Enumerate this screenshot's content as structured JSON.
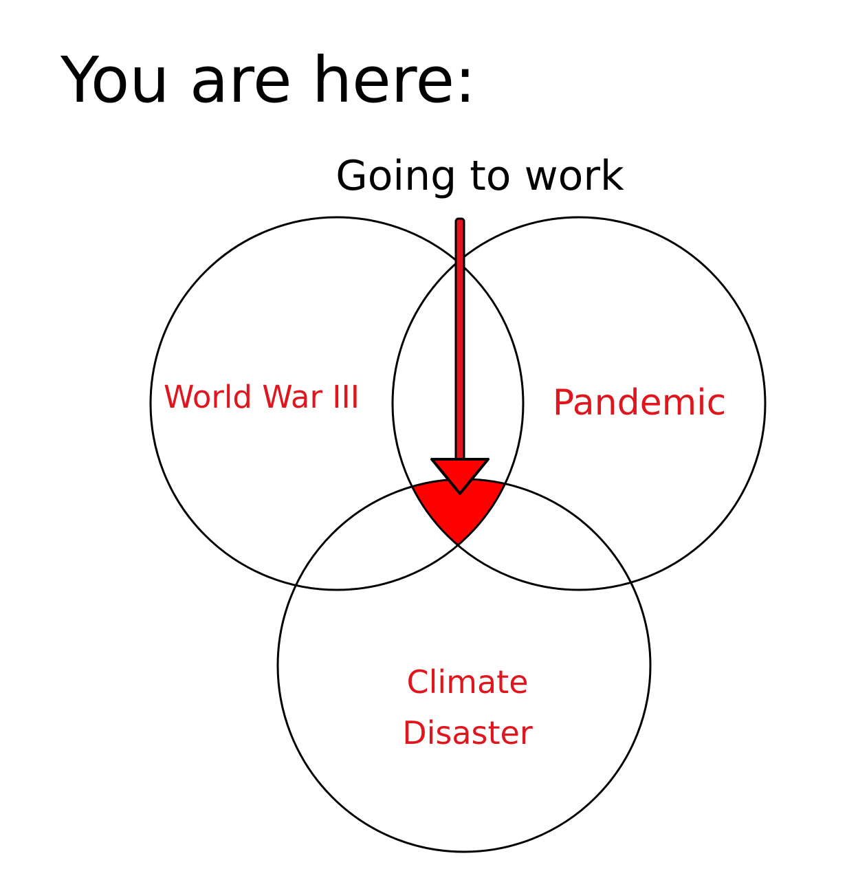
{
  "title": "You are here:",
  "pointer": {
    "label": "Going to work"
  },
  "sets": {
    "left": {
      "label": "World War III"
    },
    "right": {
      "label": "Pandemic"
    },
    "bottom": {
      "label_line1": "Climate",
      "label_line2": "Disaster"
    }
  },
  "colors": {
    "text": "#000000",
    "label": "#e0161e",
    "highlight": "#ff0000",
    "stroke": "#000000",
    "background": "#ffffff"
  }
}
